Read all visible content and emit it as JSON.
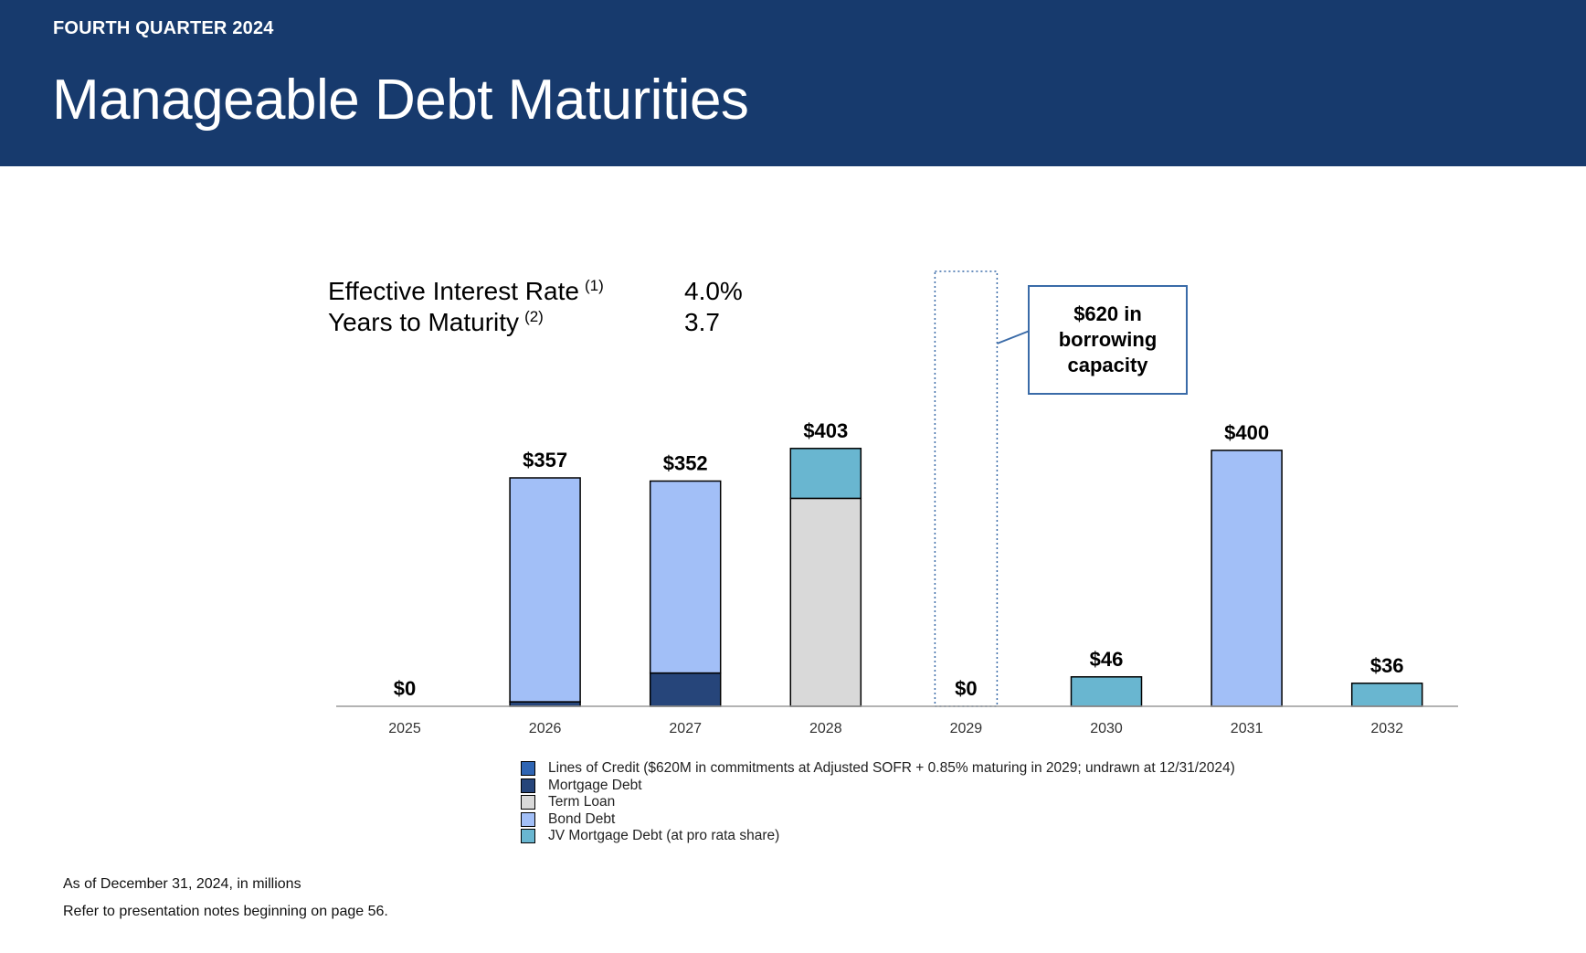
{
  "header": {
    "kicker": "FOURTH QUARTER 2024",
    "title": "Manageable Debt Maturities"
  },
  "stats": [
    {
      "label": "Effective Interest Rate",
      "note": "(1)",
      "value": "4.0%"
    },
    {
      "label": "Years to Maturity",
      "note": "(2)",
      "value": "3.7"
    }
  ],
  "callout": "$620 in borrowing capacity",
  "colors": {
    "header_bg": "#173a6d",
    "lines_of_credit": "#2f65b3",
    "mortgage_debt": "#26457a",
    "term_loan": "#d9d9d9",
    "bond_debt": "#a2bff7",
    "jv_mortgage_debt": "#69b6d0"
  },
  "chart_data": {
    "type": "bar",
    "stacked": true,
    "unit": "$ millions",
    "categories": [
      "2025",
      "2026",
      "2027",
      "2028",
      "2029",
      "2030",
      "2031",
      "2032"
    ],
    "totals": [
      "$0",
      "$357",
      "$352",
      "$403",
      "$0",
      "$46",
      "$400",
      "$36"
    ],
    "series": [
      {
        "name": "Lines of Credit ($620M in commitments at Adjusted SOFR + 0.85% maturing in 2029; undrawn at 12/31/2024)",
        "color": "#2f65b3",
        "values": [
          0,
          0,
          0,
          0,
          0,
          0,
          0,
          0
        ]
      },
      {
        "name": "Mortgage Debt",
        "color": "#26457a",
        "values": [
          0,
          7,
          52,
          0,
          0,
          0,
          0,
          0
        ]
      },
      {
        "name": "Term Loan",
        "color": "#d9d9d9",
        "values": [
          0,
          0,
          0,
          325,
          0,
          0,
          0,
          0
        ]
      },
      {
        "name": "Bond Debt",
        "color": "#a2bff7",
        "values": [
          0,
          350,
          300,
          0,
          0,
          0,
          400,
          0
        ]
      },
      {
        "name": "JV Mortgage Debt (at pro rata share)",
        "color": "#69b6d0",
        "values": [
          0,
          0,
          0,
          78,
          0,
          46,
          0,
          36
        ]
      }
    ],
    "highlight_category": "2029",
    "ylim": [
      0,
      420
    ]
  },
  "footnotes": [
    "As of December 31, 2024, in millions",
    "Refer to presentation notes beginning on page 56."
  ]
}
